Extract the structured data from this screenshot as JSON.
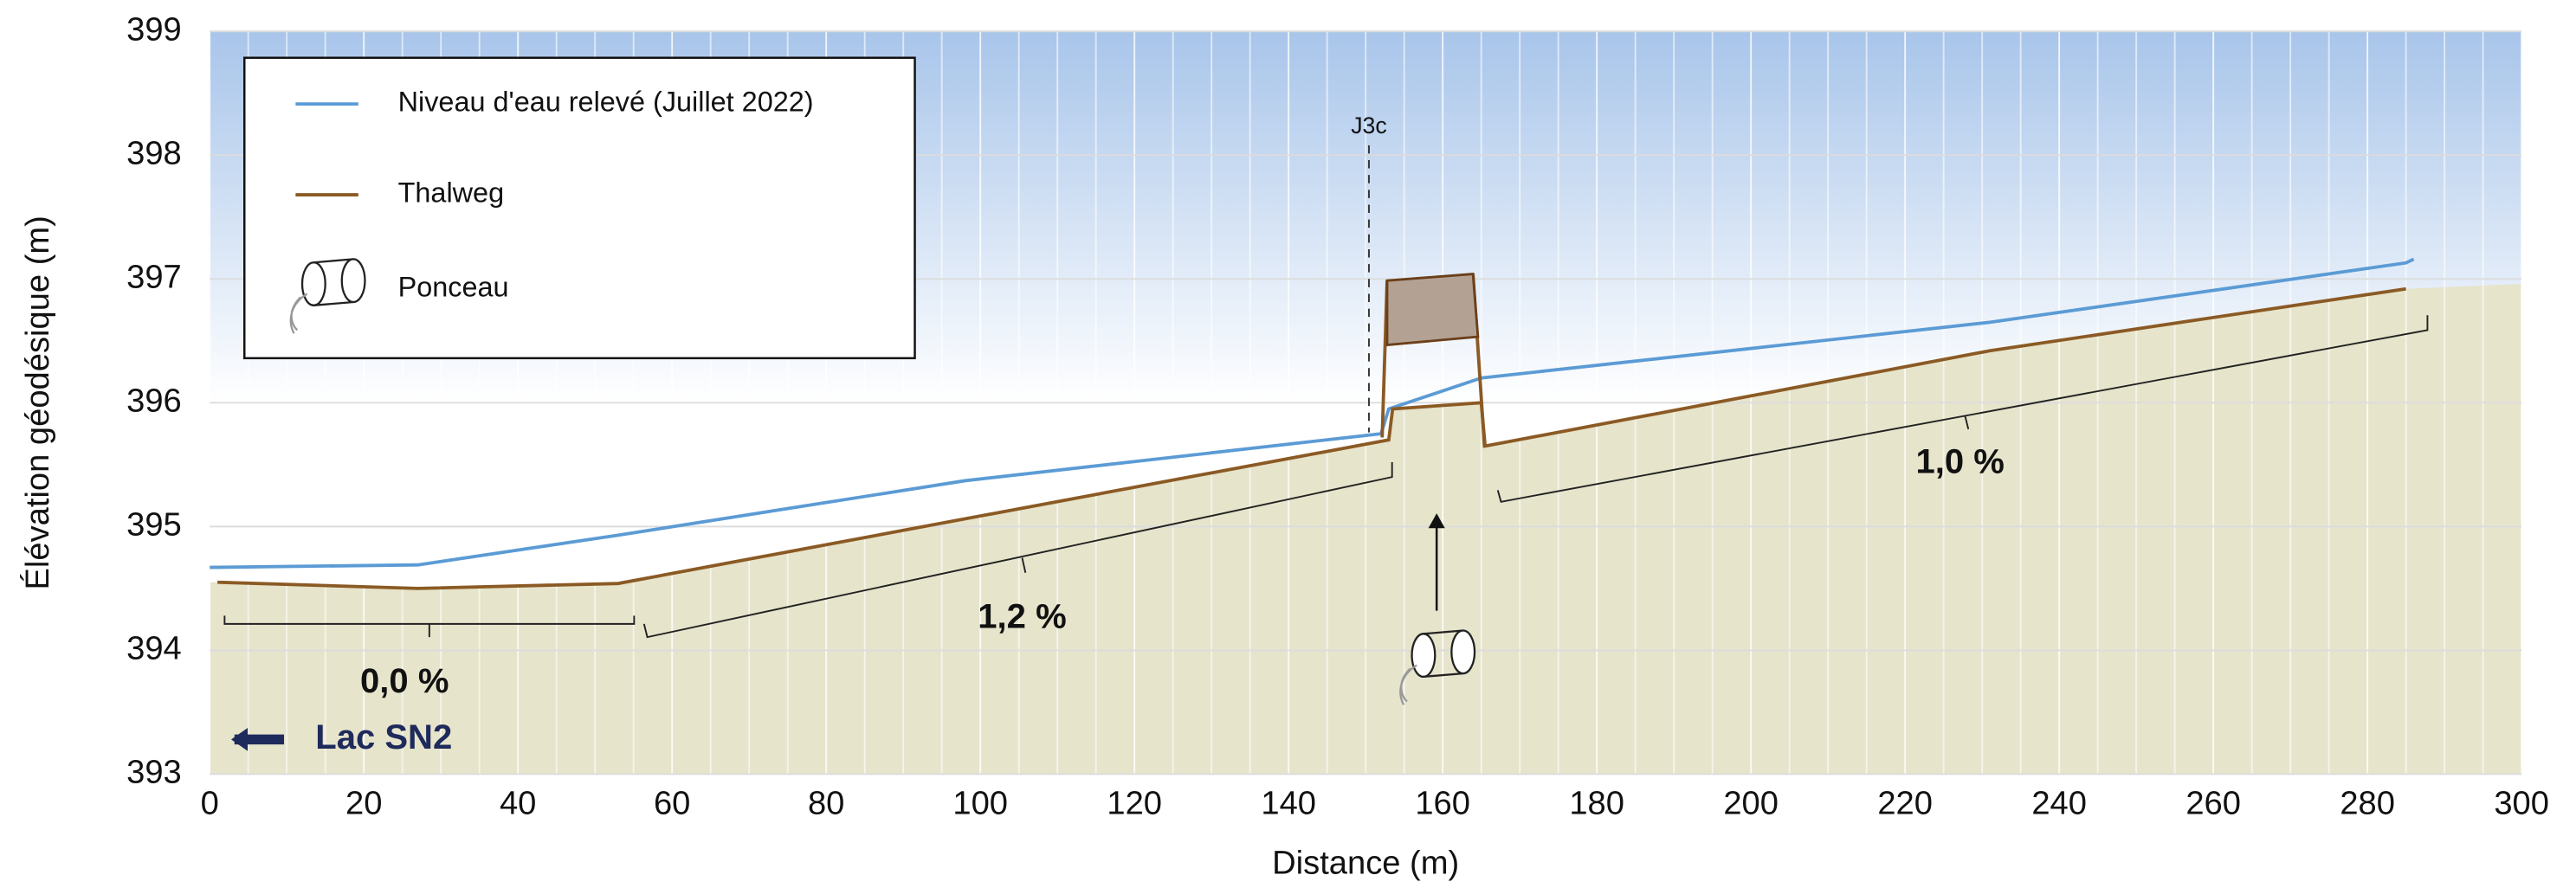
{
  "chart_data": {
    "type": "line",
    "x_label": "Distance (m)",
    "y_label": "Élévation géodésique (m)",
    "xlim": [
      0,
      300
    ],
    "xticks": [
      0,
      20,
      40,
      60,
      80,
      100,
      120,
      140,
      160,
      180,
      200,
      220,
      240,
      260,
      280,
      300
    ],
    "ylim": [
      393,
      399
    ],
    "yticks": [
      393,
      394,
      395,
      396,
      397,
      398,
      399
    ],
    "grid": true,
    "series": [
      {
        "name": "Niveau d'eau relevé (Juillet 2022)",
        "color": "#5b9bd5",
        "x": [
          0,
          27,
          53,
          98,
          152,
          153,
          165,
          231,
          285,
          286
        ],
        "values": [
          394.67,
          394.69,
          394.93,
          395.37,
          395.75,
          395.95,
          396.2,
          396.65,
          397.13,
          397.16
        ]
      },
      {
        "name": "Thalweg",
        "color": "#8b5a24",
        "x": [
          1,
          27,
          53,
          153,
          153.5,
          165,
          165.5,
          231,
          285
        ],
        "values": [
          394.55,
          394.5,
          394.54,
          395.7,
          395.95,
          396.0,
          395.65,
          396.42,
          396.92
        ]
      }
    ],
    "legend_extra": "Ponceau",
    "annotations": [
      "0,0 %",
      "1,2 %",
      "1,0 %",
      "J3c",
      "Lac SN2"
    ]
  }
}
